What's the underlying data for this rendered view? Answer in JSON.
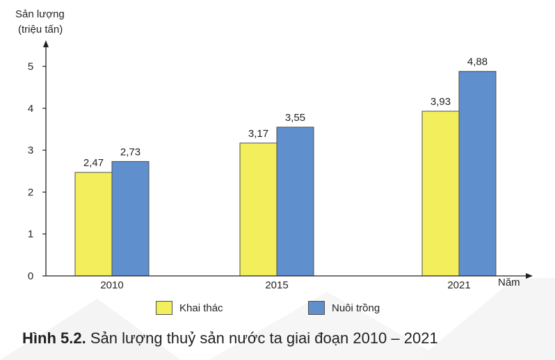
{
  "chart_data": {
    "type": "bar",
    "ylabel_line1": "Sản lượng",
    "ylabel_line2": "(triệu tấn)",
    "xlabel": "Năm",
    "categories": [
      "2010",
      "2015",
      "2021"
    ],
    "yticks": [
      0,
      1,
      2,
      3,
      4,
      5
    ],
    "ylim": [
      0,
      5.6
    ],
    "grid": false,
    "legend_position": "bottom",
    "series": [
      {
        "name": "Khai thác",
        "values": [
          2.47,
          3.17,
          3.93
        ],
        "labels": [
          "2,47",
          "3,17",
          "3,93"
        ],
        "color": "#f2ee5c"
      },
      {
        "name": "Nuôi trồng",
        "values": [
          2.73,
          3.55,
          4.88
        ],
        "labels": [
          "2,73",
          "3,55",
          "4,88"
        ],
        "color": "#5f8fcc"
      }
    ],
    "caption_bold": "Hình 5.2.",
    "caption_text": "Sản lượng thuỷ sản nước ta giai đoạn 2010 – 2021"
  }
}
